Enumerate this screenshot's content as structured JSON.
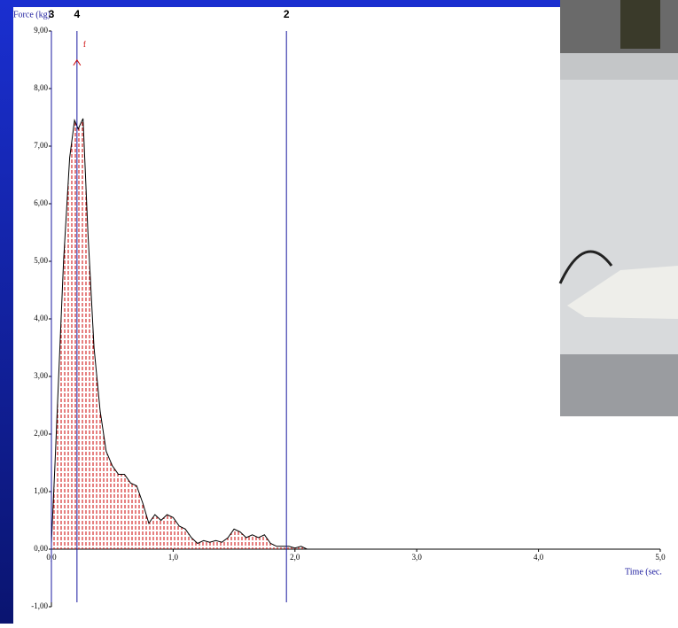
{
  "chart_data": {
    "type": "line",
    "y_label": "Force (kg)",
    "x_label": "Time (sec.",
    "x": [
      0,
      0.03,
      0.06,
      0.1,
      0.15,
      0.19,
      0.22,
      0.26,
      0.3,
      0.35,
      0.4,
      0.45,
      0.5,
      0.55,
      0.6,
      0.65,
      0.7,
      0.75,
      0.8,
      0.85,
      0.9,
      0.95,
      1.0,
      1.05,
      1.1,
      1.15,
      1.2,
      1.25,
      1.3,
      1.35,
      1.4,
      1.45,
      1.5,
      1.55,
      1.6,
      1.65,
      1.7,
      1.75,
      1.8,
      1.85,
      1.9,
      1.95,
      2.0,
      2.05,
      2.1
    ],
    "series": [
      {
        "color": "#000000",
        "fill_color": "#cc0000",
        "values": [
          0.1,
          1.5,
          3.0,
          5.0,
          6.8,
          7.45,
          7.3,
          7.48,
          5.5,
          3.5,
          2.4,
          1.7,
          1.45,
          1.3,
          1.3,
          1.15,
          1.1,
          0.8,
          0.45,
          0.6,
          0.5,
          0.6,
          0.55,
          0.4,
          0.35,
          0.2,
          0.1,
          0.15,
          0.12,
          0.15,
          0.12,
          0.2,
          0.35,
          0.3,
          0.2,
          0.25,
          0.2,
          0.25,
          0.1,
          0.05,
          0.05,
          0.05,
          0.02,
          0.05,
          0.0
        ]
      }
    ],
    "xlim": [
      0,
      5
    ],
    "ylim": [
      -1,
      9
    ],
    "xticks": [
      {
        "value": 0,
        "label": "0,0"
      },
      {
        "value": 1,
        "label": "1,0"
      },
      {
        "value": 2,
        "label": "2,0"
      },
      {
        "value": 3,
        "label": "3,0"
      },
      {
        "value": 4,
        "label": "4,0"
      },
      {
        "value": 5,
        "label": "5,0"
      }
    ],
    "yticks": [
      {
        "value": -1,
        "label": "-1,00"
      },
      {
        "value": 0,
        "label": "0,00"
      },
      {
        "value": 1,
        "label": "1,00"
      },
      {
        "value": 2,
        "label": "2,00"
      },
      {
        "value": 3,
        "label": "3,00"
      },
      {
        "value": 4,
        "label": "4,00"
      },
      {
        "value": 5,
        "label": "5,00"
      },
      {
        "value": 6,
        "label": "6,00"
      },
      {
        "value": 7,
        "label": "7,00"
      },
      {
        "value": 8,
        "label": "8,00"
      },
      {
        "value": 9,
        "label": "9,00"
      }
    ],
    "cursors": [
      {
        "label": "3",
        "x": 0
      },
      {
        "label": "4",
        "x": 0.21
      },
      {
        "label": "2",
        "x": 1.93
      }
    ],
    "marker": {
      "label": "f",
      "x": 0.21,
      "y": 8.45
    }
  }
}
